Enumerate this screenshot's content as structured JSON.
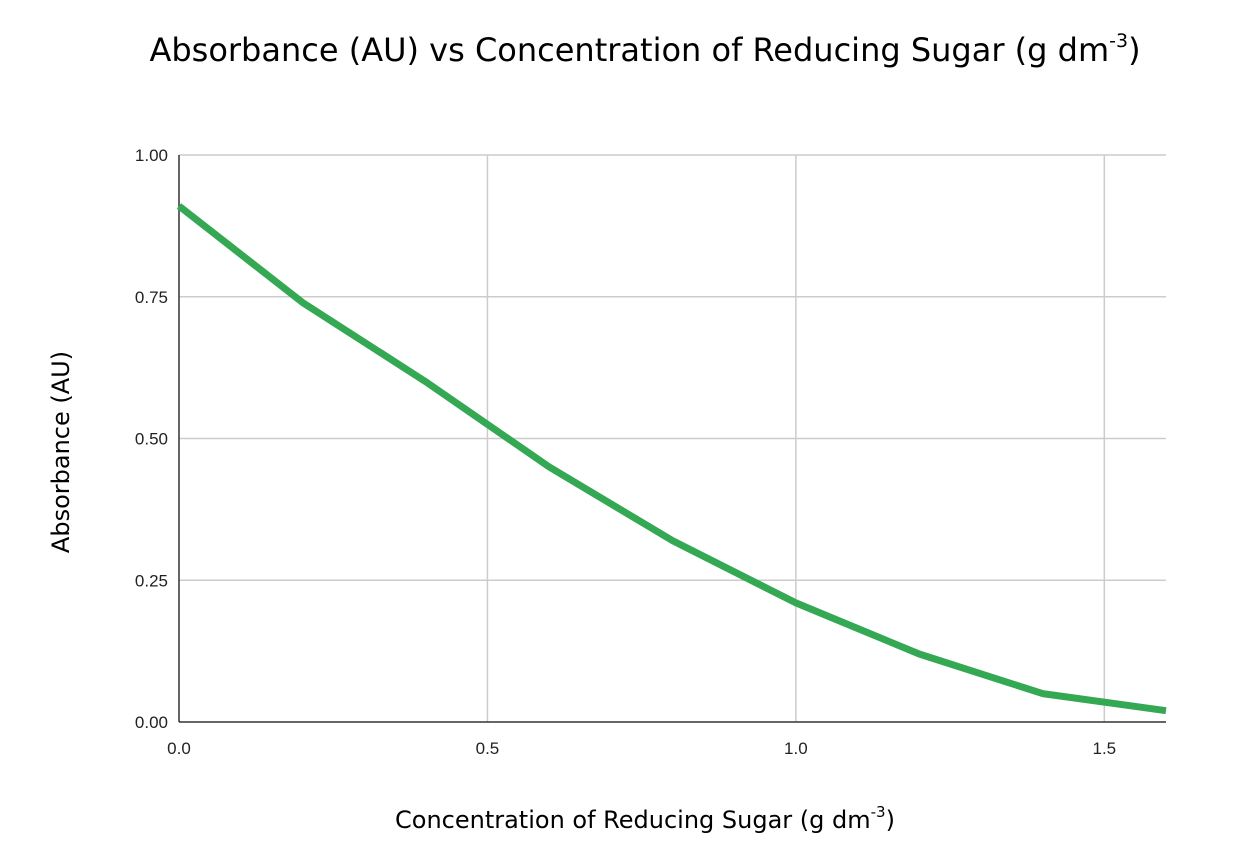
{
  "chart_data": {
    "type": "line",
    "title": "Absorbance (AU) vs Concentration of Reducing Sugar (g dm",
    "title_sup": "-3",
    "title_end": ")",
    "xlabel": "Concentration of Reducing Sugar (g dm",
    "xlabel_sup": "-3",
    "xlabel_end": ")",
    "ylabel": "Absorbance (AU)",
    "xlim": [
      0,
      1.6
    ],
    "ylim": [
      0,
      1.0
    ],
    "x_ticks": [
      0,
      0.5,
      1.0,
      1.5
    ],
    "x_tick_labels": [
      "0.0",
      "0.5",
      "1.0",
      "1.5"
    ],
    "y_ticks": [
      0,
      0.25,
      0.5,
      0.75,
      1.0
    ],
    "y_tick_labels": [
      "0.00",
      "0.25",
      "0.50",
      "0.75",
      "1.00"
    ],
    "grid": true,
    "legend": "none",
    "series": [
      {
        "color": "#34a853",
        "x": [
          0.0,
          0.2,
          0.4,
          0.6,
          0.8,
          1.0,
          1.2,
          1.4,
          1.6
        ],
        "y": [
          0.91,
          0.74,
          0.6,
          0.45,
          0.32,
          0.21,
          0.12,
          0.05,
          0.02
        ]
      }
    ]
  }
}
